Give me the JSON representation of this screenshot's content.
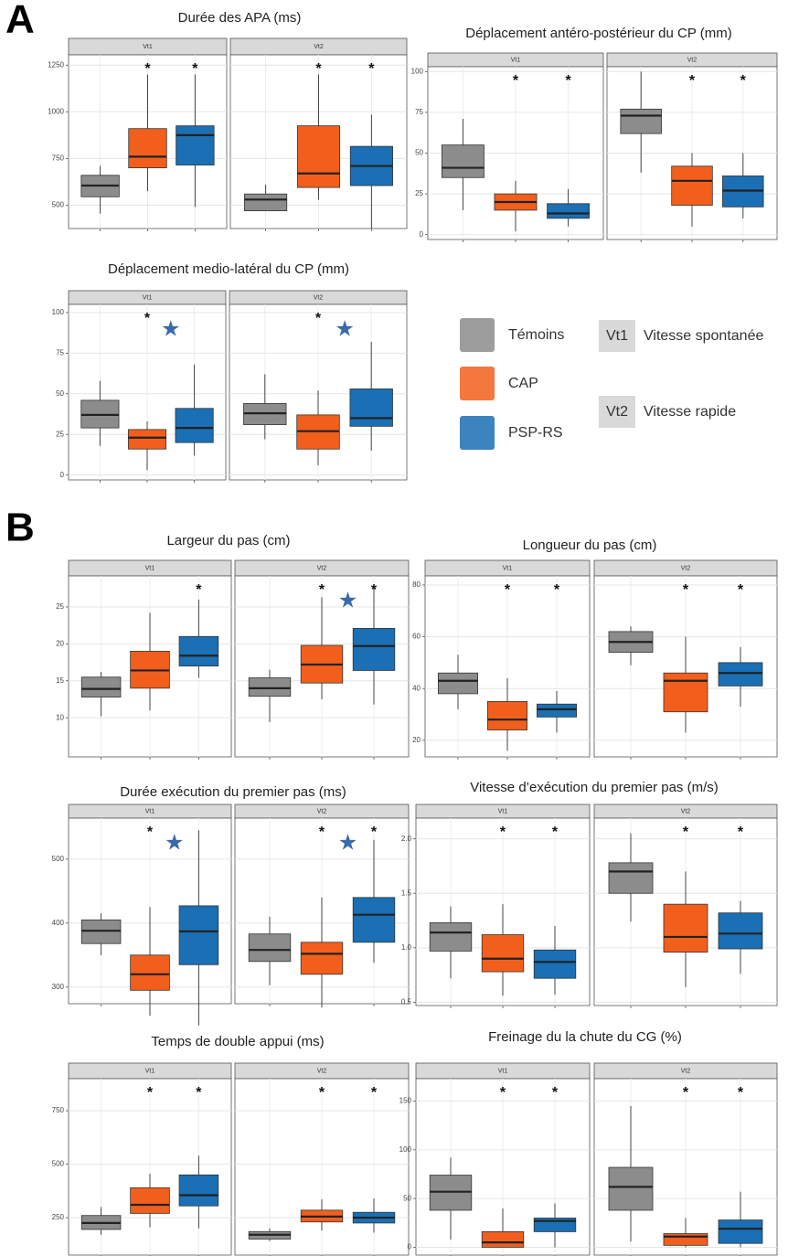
{
  "panels": [
    "A",
    "B"
  ],
  "legend": {
    "facet_descriptions": [
      "Vitesse spontanée",
      "Vitesse rapide"
    ]
  },
  "chart_data": [
    {
      "type": "box",
      "title": "Durée des APA (ms)",
      "facets": [
        "Vt1",
        "Vt2"
      ],
      "ylim": [
        375,
        1305
      ],
      "yticks": [
        500,
        750,
        1000,
        1250
      ],
      "grid": true,
      "series": [
        {
          "name": "Témoins",
          "color": "#8c8c8c",
          "values": [
            [
              455,
              545,
              605,
              660,
              710
            ],
            [
              470,
              470,
              530,
              560,
              610
            ]
          ]
        },
        {
          "name": "CAP",
          "color": "#f25f1c",
          "values": [
            [
              575,
              700,
              760,
              910,
              1200
            ],
            [
              530,
              595,
              670,
              925,
              1200
            ]
          ]
        },
        {
          "name": "PSP-RS",
          "color": "#1a6fb5",
          "values": [
            [
              490,
              715,
              875,
              925,
              1200
            ],
            [
              375,
              605,
              710,
              815,
              985
            ]
          ]
        }
      ],
      "annotations": [
        {
          "facet": 0,
          "group": 1,
          "text": "*"
        },
        {
          "facet": 0,
          "group": 2,
          "text": "*"
        },
        {
          "facet": 1,
          "group": 1,
          "text": "*"
        },
        {
          "facet": 1,
          "group": 2,
          "text": "*"
        }
      ]
    },
    {
      "type": "box",
      "title": "Déplacement antéro-postérieur du CP (mm)",
      "facets": [
        "Vt1",
        "Vt2"
      ],
      "ylim": [
        -3,
        103
      ],
      "yticks": [
        0,
        25,
        50,
        75,
        100
      ],
      "grid": true,
      "series": [
        {
          "name": "Témoins",
          "color": "#8c8c8c",
          "values": [
            [
              15,
              35,
              41,
              55,
              71
            ],
            [
              38,
              62,
              73,
              77,
              100
            ]
          ]
        },
        {
          "name": "CAP",
          "color": "#f25f1c",
          "values": [
            [
              2,
              15,
              20,
              25,
              33
            ],
            [
              5,
              18,
              33,
              42,
              50
            ]
          ]
        },
        {
          "name": "PSP-RS",
          "color": "#1a6fb5",
          "values": [
            [
              5,
              10,
              13,
              19,
              28
            ],
            [
              10,
              17,
              27,
              36,
              50
            ]
          ]
        }
      ],
      "annotations": [
        {
          "facet": 0,
          "group": 1,
          "text": "*"
        },
        {
          "facet": 0,
          "group": 2,
          "text": "*"
        },
        {
          "facet": 1,
          "group": 1,
          "text": "*"
        },
        {
          "facet": 1,
          "group": 2,
          "text": "*"
        }
      ]
    },
    {
      "type": "box",
      "title": "Déplacement medio-latéral du CP (mm)",
      "facets": [
        "Vt1",
        "Vt2"
      ],
      "ylim": [
        -3,
        105
      ],
      "yticks": [
        0,
        25,
        50,
        75,
        100
      ],
      "grid": true,
      "series": [
        {
          "name": "Témoins",
          "color": "#8c8c8c",
          "values": [
            [
              18,
              29,
              37,
              46,
              58
            ],
            [
              22,
              31,
              38,
              44,
              62
            ]
          ]
        },
        {
          "name": "CAP",
          "color": "#f25f1c",
          "values": [
            [
              3,
              16,
              23,
              28,
              33
            ],
            [
              6,
              16,
              27,
              37,
              52
            ]
          ]
        },
        {
          "name": "PSP-RS",
          "color": "#1a6fb5",
          "values": [
            [
              12,
              20,
              29,
              41,
              68
            ],
            [
              15,
              30,
              35,
              53,
              82
            ]
          ]
        }
      ],
      "annotations": [
        {
          "facet": 0,
          "group": 1,
          "text": "*"
        },
        {
          "facet": 0,
          "group": 2,
          "text": "★",
          "color": "#3a6aa8"
        },
        {
          "facet": 1,
          "group": 1,
          "text": "*"
        },
        {
          "facet": 1,
          "group": 2,
          "text": "★",
          "color": "#3a6aa8"
        }
      ]
    },
    {
      "type": "box",
      "title": "Largeur du pas (cm)",
      "facets": [
        "Vt1",
        "Vt2"
      ],
      "ylim": [
        4.7,
        29.2
      ],
      "yticks": [
        10,
        15,
        20,
        25
      ],
      "grid": true,
      "series": [
        {
          "name": "Témoins",
          "color": "#8c8c8c",
          "values": [
            [
              10.2,
              12.8,
              13.9,
              15.5,
              16.2
            ],
            [
              9.4,
              12.9,
              14,
              15.4,
              16.5
            ]
          ]
        },
        {
          "name": "CAP",
          "color": "#f25f1c",
          "values": [
            [
              11,
              14,
              16.4,
              19,
              24.2
            ],
            [
              12.5,
              14.7,
              17.2,
              19.8,
              26.3
            ]
          ]
        },
        {
          "name": "PSP-RS",
          "color": "#1a6fb5",
          "values": [
            [
              15.4,
              17,
              18.4,
              21,
              26
            ],
            [
              11.8,
              16.4,
              19.7,
              22.1,
              28
            ]
          ]
        }
      ],
      "annotations": [
        {
          "facet": 0,
          "group": 2,
          "text": "*"
        },
        {
          "facet": 1,
          "group": 1,
          "text": "*"
        },
        {
          "facet": 1,
          "group": 2,
          "text": "*"
        },
        {
          "facet": 1,
          "group": 2,
          "text": "★",
          "color": "#3a6aa8"
        }
      ]
    },
    {
      "type": "box",
      "title": "Longueur du pas (cm)",
      "facets": [
        "Vt1",
        "Vt2"
      ],
      "ylim": [
        13.6,
        83.5
      ],
      "yticks": [
        20,
        40,
        60,
        80
      ],
      "grid": true,
      "series": [
        {
          "name": "Témoins",
          "color": "#8c8c8c",
          "values": [
            [
              32,
              38,
              43,
              46,
              53
            ],
            [
              49,
              54,
              58,
              62,
              64
            ]
          ]
        },
        {
          "name": "CAP",
          "color": "#f25f1c",
          "values": [
            [
              16,
              24,
              28,
              35,
              44
            ],
            [
              23,
              31,
              43,
              46,
              60
            ]
          ]
        },
        {
          "name": "PSP-RS",
          "color": "#1a6fb5",
          "values": [
            [
              23,
              29,
              32,
              34,
              39
            ],
            [
              33,
              41,
              46,
              50,
              56
            ]
          ]
        }
      ],
      "annotations": [
        {
          "facet": 0,
          "group": 1,
          "text": "*"
        },
        {
          "facet": 0,
          "group": 2,
          "text": "*"
        },
        {
          "facet": 1,
          "group": 1,
          "text": "*"
        },
        {
          "facet": 1,
          "group": 2,
          "text": "*"
        }
      ]
    },
    {
      "type": "box",
      "title": "Durée exécution du premier pas (ms)",
      "facets": [
        "Vt1",
        "Vt2"
      ],
      "ylim": [
        274,
        564
      ],
      "yticks": [
        300,
        400,
        500
      ],
      "grid": true,
      "series": [
        {
          "name": "Témoins",
          "color": "#8c8c8c",
          "values": [
            [
              350,
              368,
              388,
              405,
              415
            ],
            [
              303,
              340,
              358,
              383,
              410
            ]
          ]
        },
        {
          "name": "CAP",
          "color": "#f25f1c",
          "values": [
            [
              255,
              295,
              320,
              350,
              425
            ],
            [
              268,
              320,
              352,
              370,
              440
            ]
          ]
        },
        {
          "name": "PSP-RS",
          "color": "#1a6fb5",
          "values": [
            [
              240,
              335,
              387,
              427,
              545
            ],
            [
              338,
              370,
              413,
              440,
              530
            ]
          ]
        }
      ],
      "annotations": [
        {
          "facet": 0,
          "group": 1,
          "text": "*"
        },
        {
          "facet": 0,
          "group": 2,
          "text": "★",
          "color": "#3a6aa8"
        },
        {
          "facet": 1,
          "group": 1,
          "text": "*"
        },
        {
          "facet": 1,
          "group": 2,
          "text": "★",
          "color": "#3a6aa8"
        },
        {
          "facet": 1,
          "group": 2,
          "text": "*"
        }
      ]
    },
    {
      "type": "box",
      "title": "Vitesse d’exécution du premier pas (m/s)",
      "facets": [
        "Vt1",
        "Vt2"
      ],
      "ylim": [
        0.47,
        2.19
      ],
      "yticks": [
        0.5,
        {
          "value": 1,
          "label": "1.0"
        },
        1.5,
        {
          "value": 2,
          "label": "2.0"
        }
      ],
      "grid": true,
      "series": [
        {
          "name": "Témoins",
          "color": "#8c8c8c",
          "values": [
            [
              0.72,
              0.97,
              1.14,
              1.23,
              1.38
            ],
            [
              1.24,
              1.5,
              1.7,
              1.78,
              2.05
            ]
          ]
        },
        {
          "name": "CAP",
          "color": "#f25f1c",
          "values": [
            [
              0.56,
              0.78,
              0.9,
              1.12,
              1.4
            ],
            [
              0.64,
              0.96,
              1.1,
              1.4,
              1.7
            ]
          ]
        },
        {
          "name": "PSP-RS",
          "color": "#1a6fb5",
          "values": [
            [
              0.57,
              0.72,
              0.87,
              0.98,
              1.2
            ],
            [
              0.76,
              0.99,
              1.13,
              1.32,
              1.43
            ]
          ]
        }
      ],
      "annotations": [
        {
          "facet": 0,
          "group": 1,
          "text": "*"
        },
        {
          "facet": 0,
          "group": 2,
          "text": "*"
        },
        {
          "facet": 1,
          "group": 1,
          "text": "*"
        },
        {
          "facet": 1,
          "group": 2,
          "text": "*"
        }
      ]
    },
    {
      "type": "box",
      "title": "Temps de double appui (ms)",
      "facets": [
        "Vt1",
        "Vt2"
      ],
      "ylim": [
        75,
        900
      ],
      "yticks": [
        250,
        500,
        750
      ],
      "grid": true,
      "series": [
        {
          "name": "Témoins",
          "color": "#8c8c8c",
          "values": [
            [
              170,
              195,
              225,
              260,
              300
            ],
            [
              140,
              150,
              170,
              185,
              200
            ]
          ]
        },
        {
          "name": "CAP",
          "color": "#f25f1c",
          "values": [
            [
              205,
              270,
              310,
              390,
              455
            ],
            [
              190,
              230,
              255,
              285,
              335
            ]
          ]
        },
        {
          "name": "PSP-RS",
          "color": "#1a6fb5",
          "values": [
            [
              200,
              305,
              355,
              450,
              540
            ],
            [
              180,
              225,
              250,
              275,
              340
            ]
          ]
        }
      ],
      "annotations": [
        {
          "facet": 0,
          "group": 1,
          "text": "*"
        },
        {
          "facet": 0,
          "group": 2,
          "text": "*"
        },
        {
          "facet": 1,
          "group": 1,
          "text": "*"
        },
        {
          "facet": 1,
          "group": 2,
          "text": "*"
        }
      ]
    },
    {
      "type": "box",
      "title": "Freinage du la chute du CG (%)",
      "facets": [
        "Vt1",
        "Vt2"
      ],
      "ylim": [
        -8,
        173
      ],
      "yticks": [
        0,
        50,
        100,
        150
      ],
      "grid": true,
      "series": [
        {
          "name": "Témoins",
          "color": "#8c8c8c",
          "values": [
            [
              8,
              38,
              57,
              74,
              92
            ],
            [
              6,
              38,
              62,
              82,
              145
            ]
          ]
        },
        {
          "name": "CAP",
          "color": "#f25f1c",
          "values": [
            [
              0,
              0,
              5,
              16,
              40
            ],
            [
              0,
              2,
              11,
              14,
              30
            ]
          ]
        },
        {
          "name": "PSP-RS",
          "color": "#1a6fb5",
          "values": [
            [
              0,
              16,
              27,
              30,
              45
            ],
            [
              0,
              4,
              19,
              28,
              57
            ]
          ]
        }
      ],
      "annotations": [
        {
          "facet": 0,
          "group": 1,
          "text": "*"
        },
        {
          "facet": 0,
          "group": 2,
          "text": "*"
        },
        {
          "facet": 1,
          "group": 1,
          "text": "*"
        },
        {
          "facet": 1,
          "group": 2,
          "text": "*"
        }
      ]
    }
  ]
}
